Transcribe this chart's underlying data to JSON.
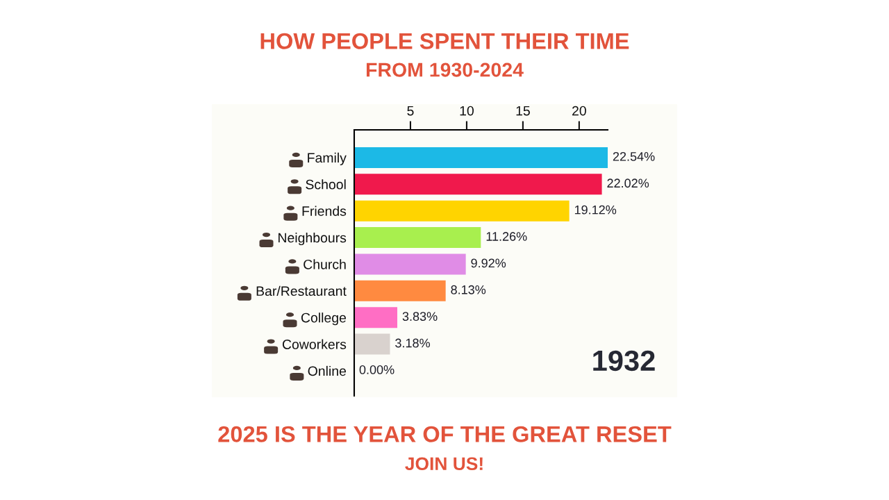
{
  "chart_data": {
    "type": "bar",
    "orientation": "horizontal",
    "title": "HOW PEOPLE SPENT THEIR TIME",
    "subtitle": "FROM 1930-2024",
    "categories": [
      "Family",
      "School",
      "Friends",
      "Neighbours",
      "Church",
      "Bar/Restaurant",
      "College",
      "Coworkers",
      "Online"
    ],
    "values": [
      22.54,
      22.02,
      19.12,
      11.26,
      9.92,
      8.13,
      3.83,
      3.18,
      0.0
    ],
    "colors": [
      "#1cb9e6",
      "#f0194c",
      "#ffd400",
      "#a8ef4e",
      "#e08ce6",
      "#ff8a40",
      "#ff6ec4",
      "#d9d2ce",
      "#e8b84a"
    ],
    "value_labels": [
      "22.54%",
      "22.02%",
      "19.12%",
      "11.26%",
      "9.92%",
      "8.13%",
      "3.83%",
      "3.18%",
      "0.00%"
    ],
    "xlim": [
      0,
      22.54
    ],
    "xticks": [
      5,
      10,
      15,
      20
    ],
    "grid": false,
    "annotations": [
      "1932",
      "2025 IS THE YEAR OF THE GREAT RESET",
      "JOIN US!"
    ]
  }
}
